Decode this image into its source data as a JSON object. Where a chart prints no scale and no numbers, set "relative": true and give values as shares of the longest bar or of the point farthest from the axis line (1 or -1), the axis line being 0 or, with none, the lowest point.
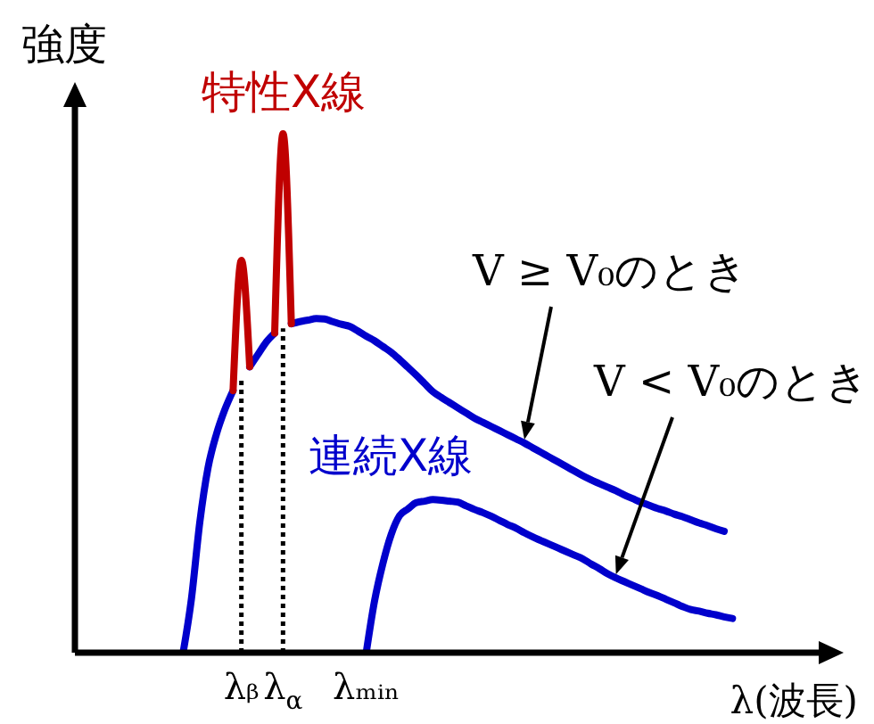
{
  "chart_data": {
    "type": "line",
    "relative": true,
    "xlabel": "λ(波長)",
    "ylabel": "強度",
    "annotations": [
      "連続X線"
    ],
    "categories": [
      null,
      null,
      null,
      null,
      null,
      null,
      null,
      null,
      null,
      null,
      null,
      null,
      null,
      null,
      null,
      null,
      null,
      null,
      null,
      null,
      "λᵦ",
      null,
      null,
      null,
      null,
      "λ$_{α}$",
      null,
      null,
      null,
      null,
      null,
      null,
      null,
      null,
      null,
      "λₘᵢₙ",
      null,
      null,
      null,
      null,
      null,
      null,
      null,
      null,
      null,
      null,
      null,
      null,
      null,
      null,
      null,
      null,
      null,
      null,
      null,
      null,
      null,
      null,
      null,
      null,
      null,
      null,
      null,
      null,
      null,
      null,
      null,
      null,
      null,
      null,
      null,
      null,
      null,
      null,
      null,
      null,
      null,
      null,
      null,
      null,
      null,
      null,
      null,
      null,
      null,
      null,
      null,
      null,
      null,
      null,
      null
    ],
    "series": [
      {
        "name": "V ≥ V₀のとき",
        "color": "#0000cc",
        "values": [
          null,
          null,
          null,
          null,
          null,
          null,
          null,
          null,
          null,
          null,
          null,
          null,
          null,
          0,
          0.104,
          0.251,
          0.357,
          0.421,
          0.468,
          0.505,
          null,
          0.551,
          0.575,
          0.599,
          0.616,
          null,
          0.634,
          0.638,
          0.641,
          0.644,
          0.643,
          0.638,
          0.633,
          0.629,
          0.62,
          0.61,
          0.601,
          0.59,
          0.579,
          0.565,
          0.55,
          0.535,
          0.519,
          0.503,
          0.492,
          0.482,
          0.472,
          0.462,
          0.452,
          0.444,
          0.436,
          0.428,
          0.42,
          0.412,
          0.404,
          0.395,
          0.386,
          0.377,
          0.368,
          0.359,
          0.35,
          0.341,
          0.333,
          0.326,
          0.319,
          0.312,
          0.304,
          0.297,
          0.29,
          0.284,
          0.278,
          0.273,
          0.267,
          0.262,
          0.256,
          0.25,
          0.245,
          0.239,
          0.234,
          null,
          null,
          null,
          null,
          null,
          null,
          null,
          null,
          null,
          null,
          null,
          null
        ]
      },
      {
        "name": "V < V₀のとき",
        "color": "#0000cc",
        "values": [
          null,
          null,
          null,
          null,
          null,
          null,
          null,
          null,
          null,
          null,
          null,
          null,
          null,
          null,
          null,
          null,
          null,
          null,
          null,
          null,
          null,
          null,
          null,
          null,
          null,
          null,
          null,
          null,
          null,
          null,
          null,
          null,
          null,
          null,
          null,
          0,
          0.1,
          0.172,
          0.228,
          0.264,
          0.277,
          0.289,
          0.292,
          0.295,
          0.294,
          0.292,
          0.29,
          0.283,
          0.276,
          0.27,
          0.263,
          0.255,
          0.247,
          0.24,
          0.231,
          0.223,
          0.216,
          0.209,
          0.202,
          0.195,
          0.188,
          0.181,
          0.171,
          0.162,
          0.152,
          0.144,
          0.137,
          0.13,
          0.123,
          0.116,
          0.11,
          0.103,
          0.096,
          0.089,
          0.083,
          0.08,
          0.076,
          0.073,
          0.069,
          0.066,
          null,
          null,
          null,
          null,
          null,
          null,
          null,
          null,
          null,
          null,
          null
        ]
      },
      {
        "name": "特性X線",
        "color": "#c00000",
        "values": [
          null,
          null,
          null,
          null,
          null,
          null,
          null,
          null,
          null,
          null,
          null,
          null,
          null,
          null,
          null,
          null,
          null,
          null,
          null,
          0.505,
          0.756,
          0.551,
          null,
          null,
          0.616,
          1,
          0.634,
          null,
          null,
          null,
          null,
          null,
          null,
          null,
          null,
          null,
          null,
          null,
          null,
          null,
          null,
          null,
          null,
          null,
          null,
          null,
          null,
          null,
          null,
          null,
          null,
          null,
          null,
          null,
          null,
          null,
          null,
          null,
          null,
          null,
          null,
          null,
          null,
          null,
          null,
          null,
          null,
          null,
          null,
          null,
          null,
          null,
          null,
          null,
          null,
          null,
          null,
          null,
          null,
          null,
          null,
          null,
          null,
          null,
          null,
          null,
          null,
          null,
          null,
          null,
          null
        ]
      }
    ],
    "ref_lines": [
      {
        "axis": "x",
        "value": "λᵦ",
        "line_style": "dotted",
        "color": "#000000"
      },
      {
        "axis": "x",
        "value": "λ$_{α}$",
        "line_style": "dotted",
        "color": "#000000"
      }
    ]
  }
}
